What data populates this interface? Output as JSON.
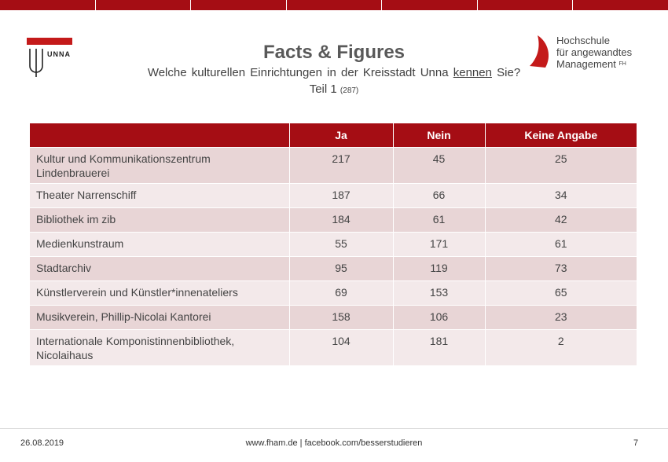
{
  "header": {
    "title": "Facts & Figures",
    "subtitle_before": "Welche kulturellen  Einrichtungen  in der Kreisstadt Unna",
    "subtitle_underlined": "kennen",
    "subtitle_after": "Sie?",
    "part_label": "Teil 1",
    "part_count": "(287)"
  },
  "logo_left": {
    "word": "UNNA",
    "color": "#c41a1a"
  },
  "logo_right": {
    "line1": "Hochschule",
    "line2": "für angewandtes",
    "line3": "Management",
    "suffix": "FH",
    "color": "#c41a1a"
  },
  "table": {
    "headers": [
      "",
      "Ja",
      "Nein",
      "Keine Angabe"
    ],
    "rows": [
      {
        "label": "Kultur und Kommunikationszentrum Lindenbrauerei",
        "ja": "217",
        "nein": "45",
        "keine": "25"
      },
      {
        "label": "Theater Narrenschiff",
        "ja": "187",
        "nein": "66",
        "keine": "34"
      },
      {
        "label": "Bibliothek im zib",
        "ja": "184",
        "nein": "61",
        "keine": "42"
      },
      {
        "label": "Medienkunstraum",
        "ja": "55",
        "nein": "171",
        "keine": "61"
      },
      {
        "label": "Stadtarchiv",
        "ja": "95",
        "nein": "119",
        "keine": "73"
      },
      {
        "label": "Künstlerverein und Künstler*innenateliers",
        "ja": "69",
        "nein": "153",
        "keine": "65"
      },
      {
        "label": "Musikverein, Phillip-Nicolai Kantorei",
        "ja": "158",
        "nein": "106",
        "keine": "23"
      },
      {
        "label": "Internationale Komponistinnenbibliothek, Nicolaihaus",
        "ja": "104",
        "nein": "181",
        "keine": "2"
      }
    ],
    "header_color": "#a50d14",
    "row_color_odd": "#e8d5d6",
    "row_color_even": "#f3e9ea"
  },
  "footer": {
    "date": "26.08.2019",
    "web": "www.fham.de   |  facebook.com/besserstudieren",
    "page": "7"
  }
}
